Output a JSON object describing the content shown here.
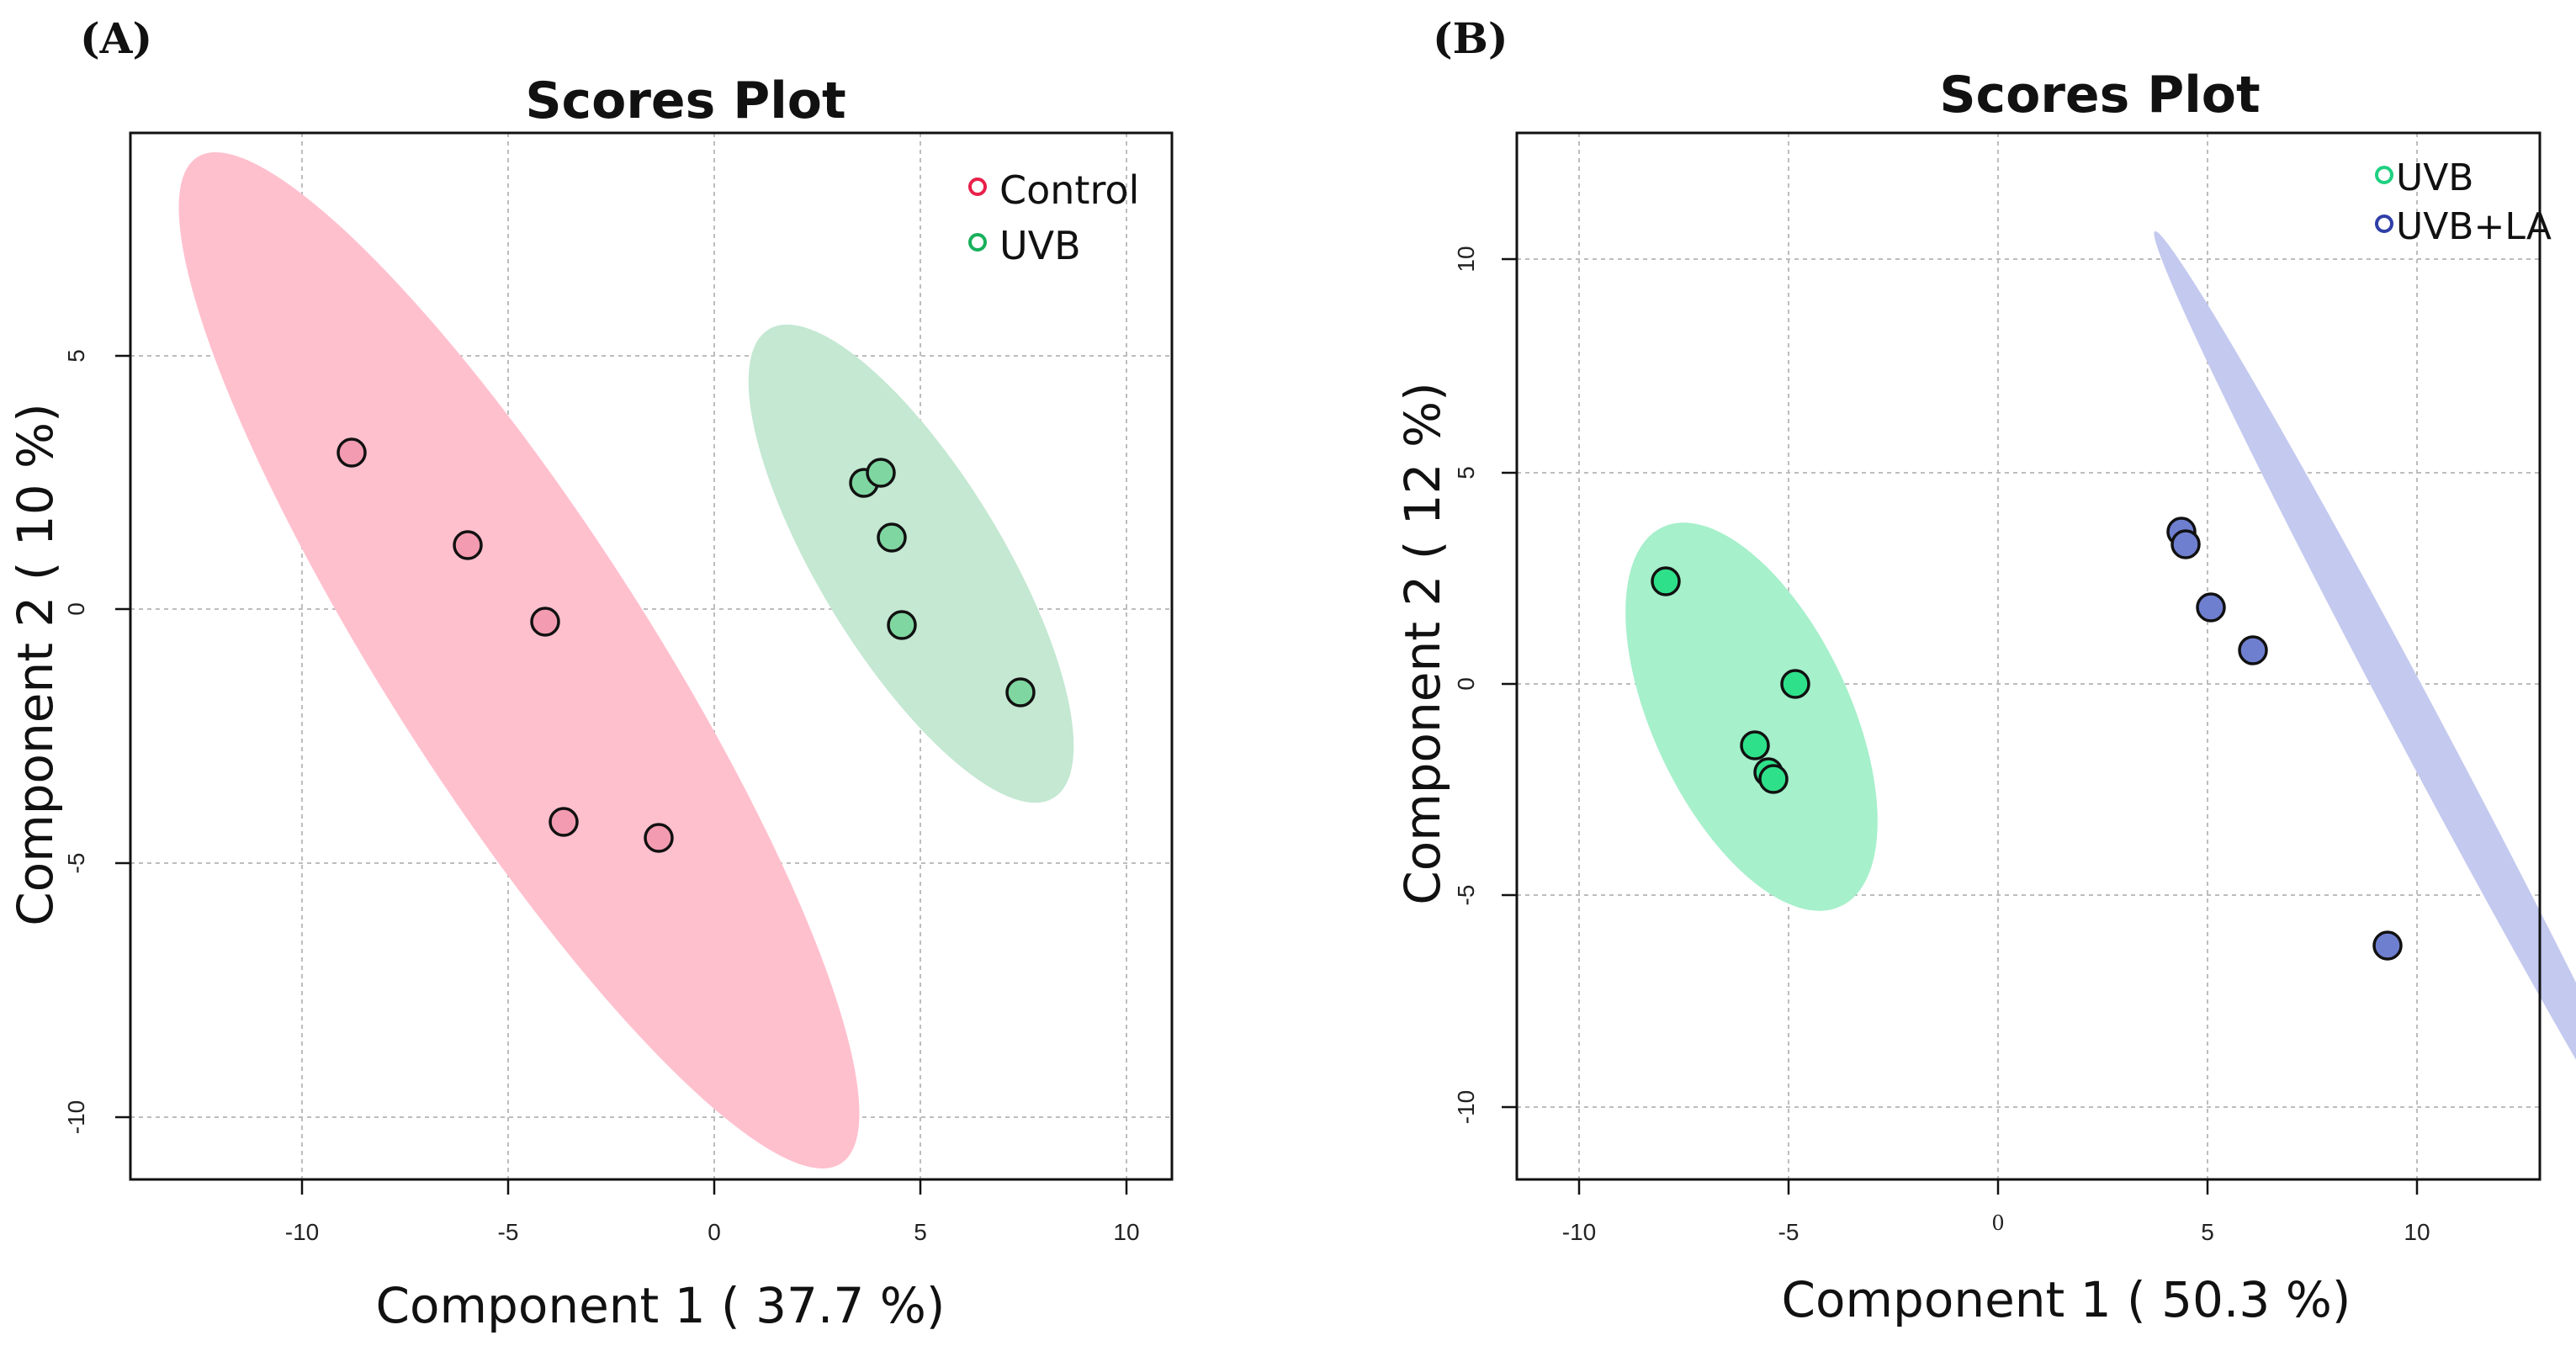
{
  "chart_data": [
    {
      "type": "scatter",
      "panel_label": "(A)",
      "title": "Scores Plot",
      "xlabel": "Component 1 ( 37.7 %)",
      "ylabel": "Component 2 ( 10 %)",
      "xlim": [
        -14.2,
        11.2
      ],
      "ylim": [
        -11.2,
        9.5
      ],
      "xticks": [
        -10,
        -5,
        0,
        5,
        10
      ],
      "xtick_labels": [
        "-10",
        "-5",
        "0",
        "5",
        "10"
      ],
      "yticks": [
        -10,
        -5,
        0,
        5
      ],
      "ytick_labels": [
        "-10",
        "-5",
        "0",
        "5"
      ],
      "grid": true,
      "legend_position": "top-right",
      "series": [
        {
          "name": "Control",
          "color": "#f2a0b5",
          "legend_color": "#e8204a",
          "ellipse_color": "#ffb6c6",
          "points": [
            [
              -8.8,
              3.1
            ],
            [
              -6.0,
              1.25
            ],
            [
              -4.1,
              -0.25
            ],
            [
              -3.7,
              -4.2
            ],
            [
              -1.35,
              -4.5
            ]
          ]
        },
        {
          "name": "UVB",
          "color": "#7fd6a0",
          "legend_color": "#17b05a",
          "ellipse_color": "#bfe6cd",
          "points": [
            [
              3.6,
              2.5
            ],
            [
              4.0,
              2.7
            ],
            [
              4.3,
              1.4
            ],
            [
              4.5,
              -0.3
            ],
            [
              7.4,
              -1.65
            ]
          ]
        }
      ]
    },
    {
      "type": "scatter",
      "panel_label": "(B)",
      "title": "Scores Plot",
      "xlabel": "Component 1 ( 50.3 %)",
      "ylabel": "Component 2 ( 12 %)",
      "xlim": [
        -11.5,
        12.9
      ],
      "ylim": [
        -11.6,
        13.2
      ],
      "xticks": [
        -10,
        -5,
        0,
        5,
        10
      ],
      "xtick_labels": [
        "-10",
        "-5",
        "0",
        "5",
        "10"
      ],
      "yticks": [
        -10,
        -5,
        0,
        5,
        10
      ],
      "ytick_labels": [
        "-10",
        "-5",
        "0",
        "5",
        "10"
      ],
      "grid": true,
      "legend_position": "top-right",
      "series": [
        {
          "name": "UVB",
          "color": "#2fe08a",
          "legend_color": "#1fd080",
          "ellipse_color": "#a9f2cc",
          "points": [
            [
              -7.9,
              2.45
            ],
            [
              -4.8,
              0.0
            ],
            [
              -5.8,
              -1.45
            ],
            [
              -5.5,
              -2.1
            ],
            [
              -5.4,
              -2.25
            ]
          ]
        },
        {
          "name": "UVB+LA",
          "color": "#6f7fd0",
          "legend_color": "#2f3fa8",
          "ellipse_color": "#c4c9ef",
          "points": [
            [
              4.4,
              3.6
            ],
            [
              4.5,
              3.3
            ],
            [
              5.1,
              1.8
            ],
            [
              6.1,
              0.8
            ],
            [
              9.3,
              -6.2
            ]
          ]
        }
      ]
    }
  ]
}
